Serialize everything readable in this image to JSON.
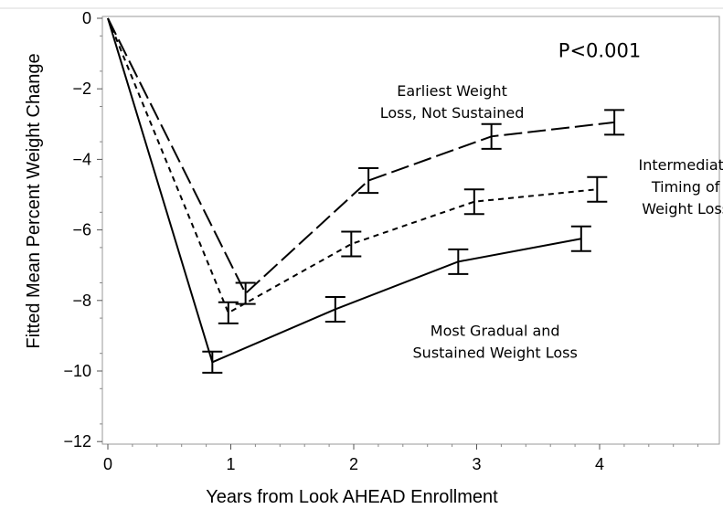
{
  "chart_data": {
    "type": "line",
    "xlabel": "Years from Look AHEAD Enrollment",
    "ylabel": "Fitted Mean Percent Weight Change",
    "xlim": [
      0,
      5
    ],
    "ylim": [
      -12,
      0
    ],
    "x_ticks": [
      "0",
      "1",
      "2",
      "3",
      "4"
    ],
    "y_ticks": [
      "0",
      "−2",
      "−4",
      "−6",
      "−8",
      "−10",
      "−12"
    ],
    "grid": false,
    "series": [
      {
        "dash": "long-dash",
        "x": [
          0,
          1.12,
          2.12,
          3.12,
          4.12
        ],
        "y": [
          0,
          -7.8,
          -4.6,
          -3.35,
          -2.95
        ],
        "error": [
          0,
          0.3,
          0.35,
          0.35,
          0.35
        ]
      },
      {
        "dash": "short-dash",
        "x": [
          0,
          0.98,
          1.98,
          2.98,
          3.98
        ],
        "y": [
          0,
          -8.35,
          -6.4,
          -5.2,
          -4.85
        ],
        "error": [
          0,
          0.3,
          0.35,
          0.35,
          0.35
        ]
      },
      {
        "dash": "solid",
        "x": [
          0,
          0.85,
          1.85,
          2.85,
          3.85
        ],
        "y": [
          0,
          -9.75,
          -8.25,
          -6.9,
          -6.25
        ],
        "error": [
          0,
          0.3,
          0.35,
          0.35,
          0.35
        ]
      }
    ],
    "annotations": [
      {
        "lines": [
          "Earliest Weight",
          "Loss, Not Sustained"
        ],
        "ax": 2.8,
        "ay": -2.2,
        "align": "middle"
      },
      {
        "lines": [
          "Intermediate",
          "Timing of",
          "Weight Loss"
        ],
        "ax": 4.7,
        "ay": -4.3,
        "align": "middle"
      },
      {
        "lines": [
          "Most Gradual and",
          "Sustained Weight Loss"
        ],
        "ax": 3.15,
        "ay": -9.0,
        "align": "middle"
      },
      {
        "lines": [
          "P<0.001"
        ],
        "ax": 4.0,
        "ay": -1.1,
        "align": "middle",
        "big": true
      }
    ]
  }
}
